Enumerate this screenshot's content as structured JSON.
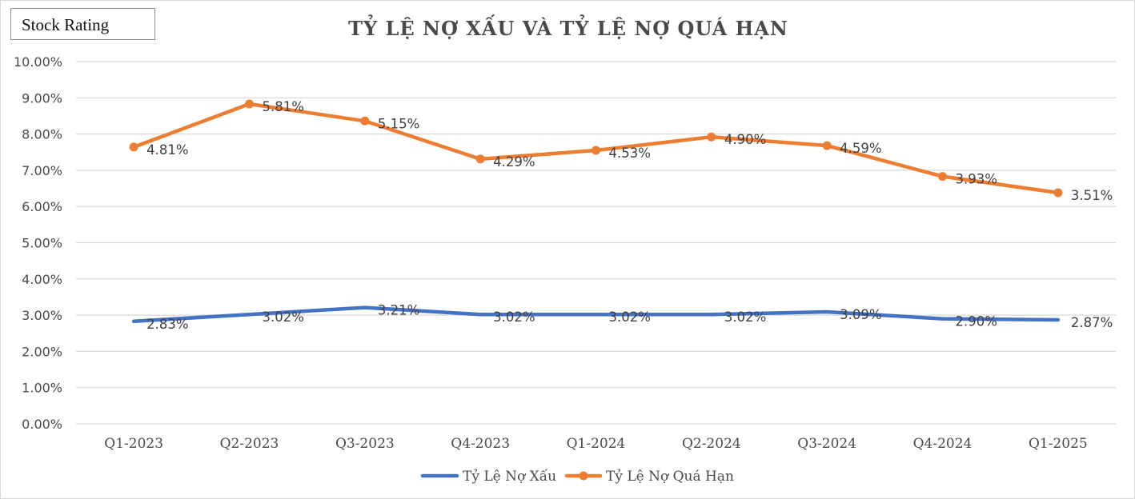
{
  "badge": {
    "label": "Stock Rating"
  },
  "chart_data": {
    "type": "line",
    "title": "TỶ LỆ NỢ XẤU VÀ TỶ LỆ NỢ QUÁ HẠN",
    "categories": [
      "Q1-2023",
      "Q2-2023",
      "Q3-2023",
      "Q4-2023",
      "Q1-2024",
      "Q2-2024",
      "Q3-2024",
      "Q4-2024",
      "Q1-2025"
    ],
    "ylim": [
      0,
      10
    ],
    "ytick_step": 1,
    "ytick_format": "percent-2dp",
    "grid": true,
    "legend_position": "bottom",
    "series": [
      {
        "name": "Tỷ Lệ Nợ Xấu",
        "color": "#4472c4",
        "markers": false,
        "values": [
          2.83,
          3.02,
          3.21,
          3.02,
          3.02,
          3.02,
          3.09,
          2.9,
          2.87
        ],
        "labels": [
          "2.83%",
          "3.02%",
          "3.21%",
          "3.02%",
          "3.02%",
          "3.02%",
          "3.09%",
          "2.90%",
          "2.87%"
        ]
      },
      {
        "name": "Tỷ Lệ Nợ Quá Hạn",
        "color": "#ed7d31",
        "markers": true,
        "values": [
          7.64,
          8.83,
          8.36,
          7.31,
          7.55,
          7.92,
          7.68,
          6.83,
          6.38
        ],
        "labels": [
          "4.81%",
          "5.81%",
          "5.15%",
          "4.29%",
          "4.53%",
          "4.90%",
          "4.59%",
          "3.93%",
          "3.51%"
        ]
      }
    ]
  }
}
